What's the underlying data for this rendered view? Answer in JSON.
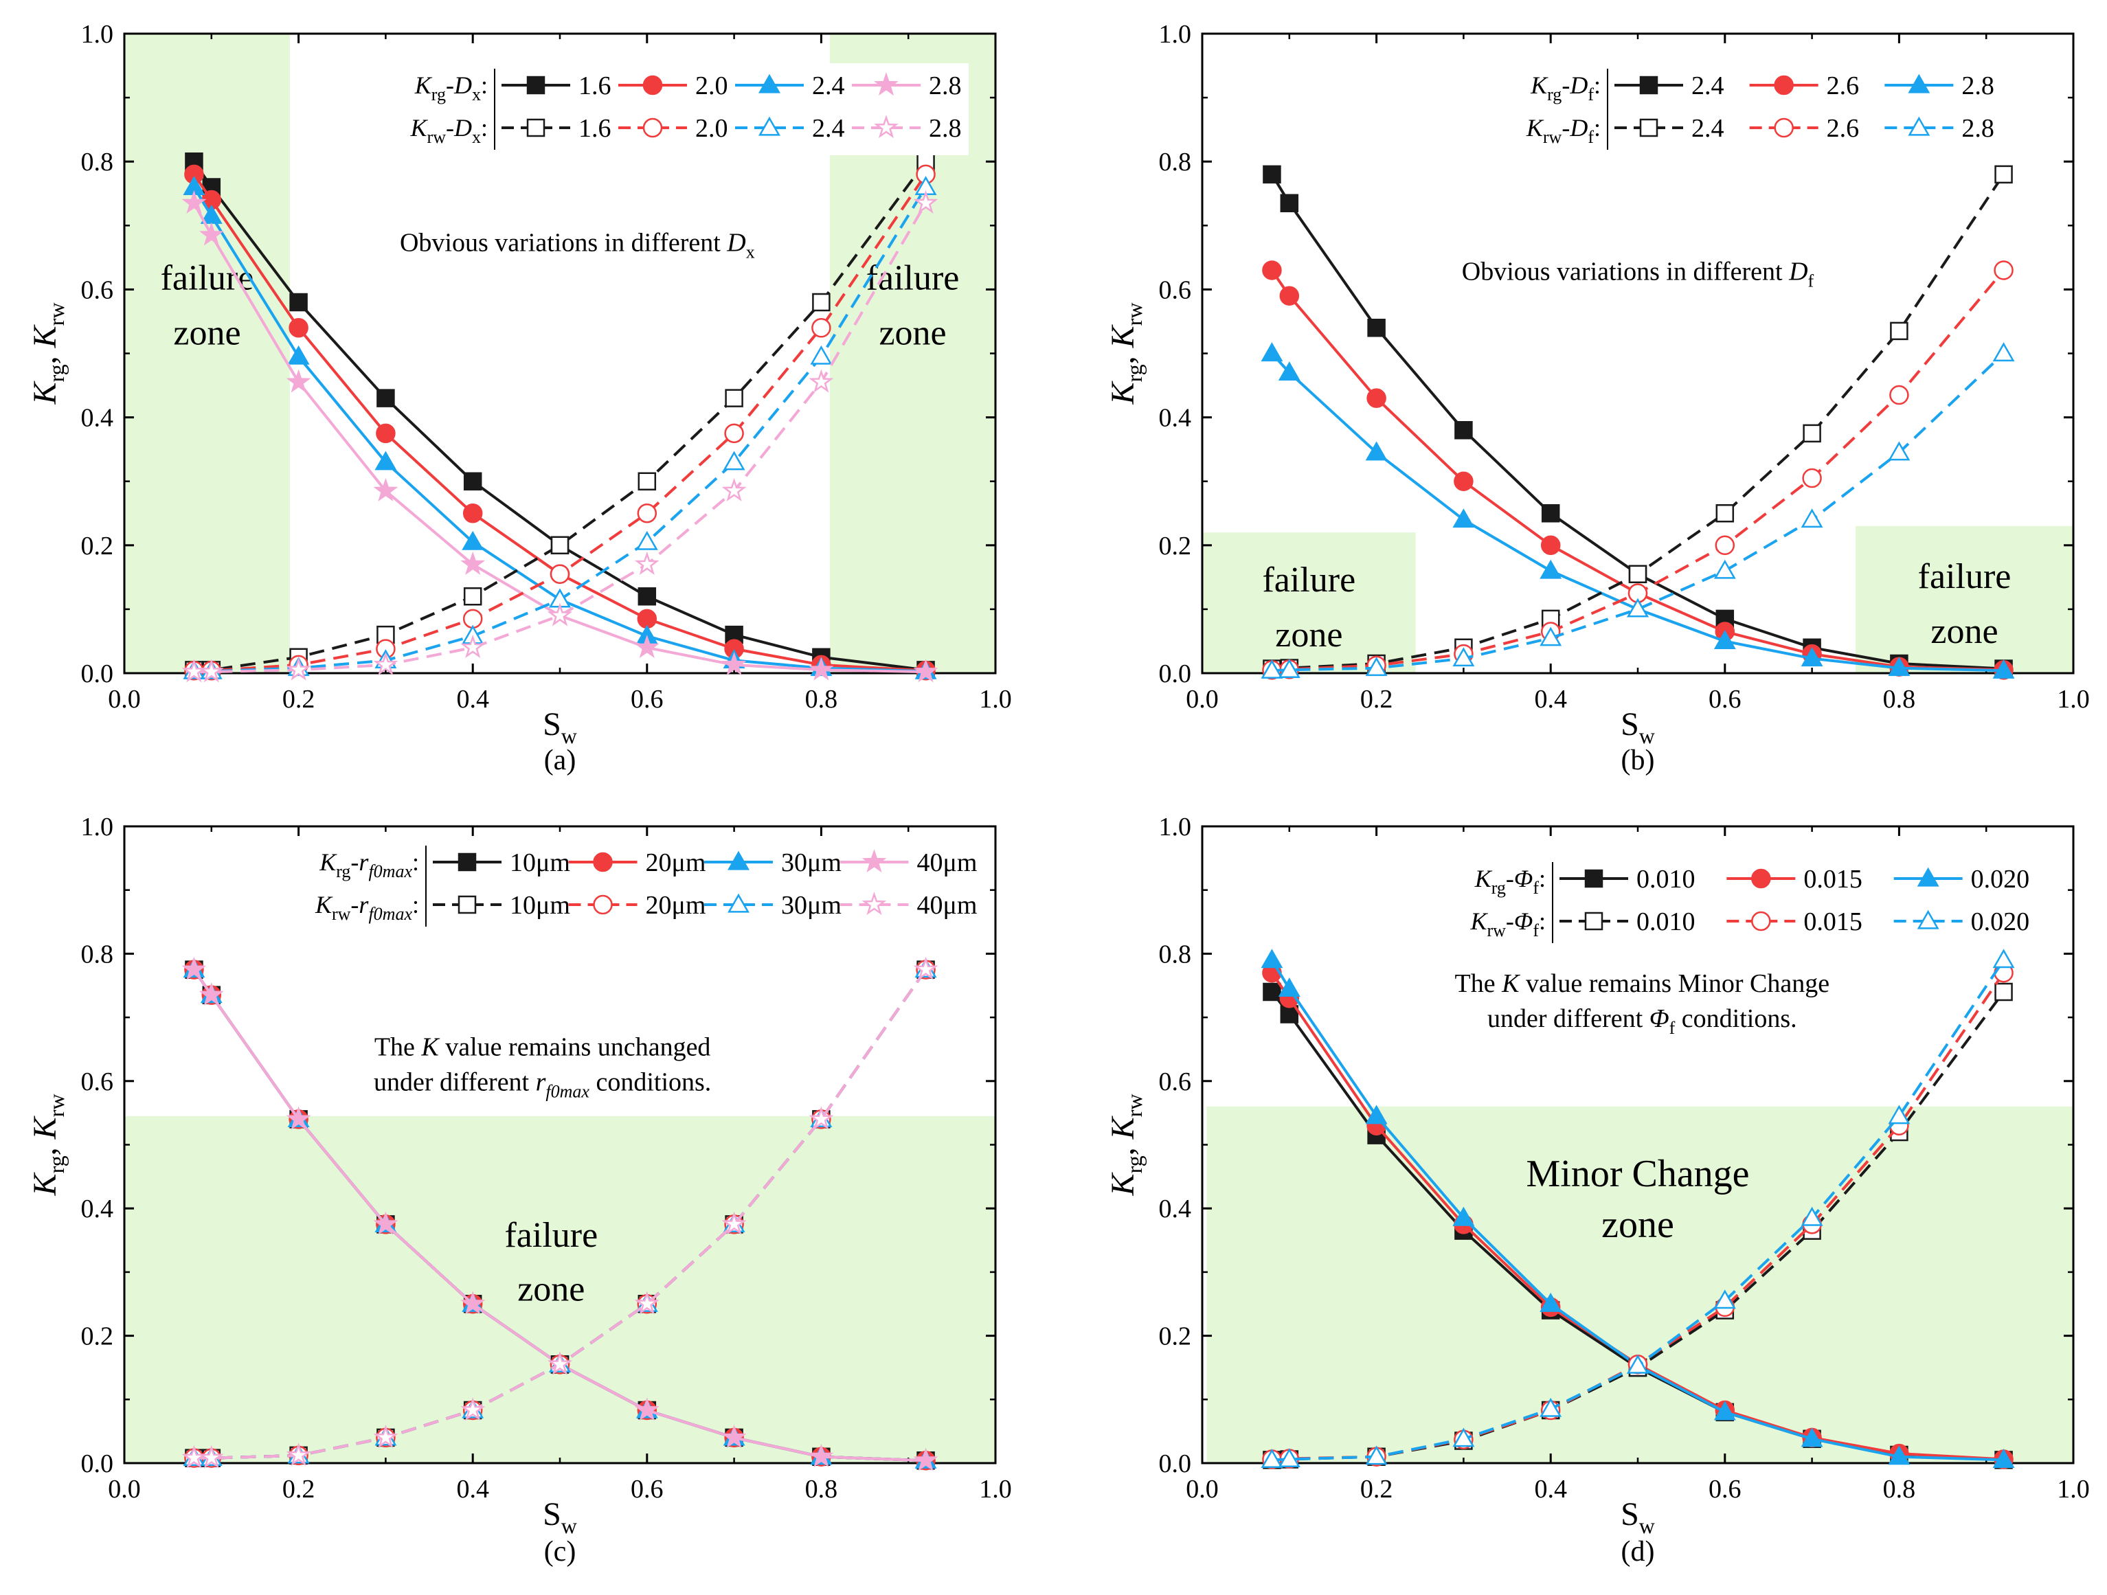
{
  "colors": {
    "black": "#1a1a1a",
    "red": "#f03c3c",
    "blue": "#1aa3ef",
    "pink": "#f4a8d6",
    "zone": "#e4f7d7",
    "axis": "#000000"
  },
  "chart_data": [
    {
      "type": "line",
      "panel": "(a)",
      "xlabel": "S",
      "xlabel_sub": "w",
      "ylabel": "K_rg, K_rw",
      "xlim": [
        0.0,
        1.0
      ],
      "ylim": [
        0.0,
        1.0
      ],
      "xticks": [
        "0.0",
        "0.2",
        "0.4",
        "0.6",
        "0.8",
        "1.0"
      ],
      "yticks": [
        "0.0",
        "0.2",
        "0.4",
        "0.6",
        "0.8",
        "1.0"
      ],
      "annotation": {
        "text": "Obvious variations in different ",
        "italic": "D",
        "sub": "x"
      },
      "zones": [
        {
          "x0": 0.0,
          "x1": 0.19,
          "y0": 0.0,
          "y1": 1.0,
          "line1": "failure",
          "line2": "zone"
        },
        {
          "x0": 0.81,
          "x1": 1.0,
          "y0": 0.0,
          "y1": 1.0,
          "line1": "failure",
          "line2": "zone"
        }
      ],
      "legend": {
        "row1_label": {
          "k": "K",
          "ksub": "rg",
          "sep": "-",
          "p": "D",
          "psub": "x"
        },
        "row2_label": {
          "k": "K",
          "ksub": "rw",
          "sep": "-",
          "p": "D",
          "psub": "x"
        },
        "values": [
          "1.6",
          "2.0",
          "2.4",
          "2.8"
        ]
      },
      "x": [
        0.08,
        0.1,
        0.2,
        0.3,
        0.4,
        0.5,
        0.6,
        0.7,
        0.8,
        0.92
      ],
      "series": [
        {
          "name": "Krg-Dx 1.6",
          "color": "black",
          "marker": "square",
          "filled": true,
          "dashed": false,
          "values": [
            0.8,
            0.76,
            0.58,
            0.43,
            0.3,
            0.2,
            0.12,
            0.06,
            0.025,
            0.005
          ]
        },
        {
          "name": "Krg-Dx 2.0",
          "color": "red",
          "marker": "circle",
          "filled": true,
          "dashed": false,
          "values": [
            0.78,
            0.74,
            0.54,
            0.375,
            0.25,
            0.155,
            0.085,
            0.038,
            0.013,
            0.004
          ]
        },
        {
          "name": "Krg-Dx 2.4",
          "color": "blue",
          "marker": "triangle",
          "filled": true,
          "dashed": false,
          "values": [
            0.76,
            0.715,
            0.495,
            0.33,
            0.205,
            0.115,
            0.058,
            0.02,
            0.008,
            0.003
          ]
        },
        {
          "name": "Krg-Dx 2.8",
          "color": "pink",
          "marker": "star",
          "filled": true,
          "dashed": false,
          "values": [
            0.735,
            0.685,
            0.455,
            0.285,
            0.17,
            0.09,
            0.04,
            0.013,
            0.005,
            0.002
          ]
        },
        {
          "name": "Krw-Dx 1.6",
          "color": "black",
          "marker": "square",
          "filled": false,
          "dashed": true,
          "values": [
            0.005,
            0.005,
            0.025,
            0.06,
            0.12,
            0.2,
            0.3,
            0.43,
            0.58,
            0.8
          ]
        },
        {
          "name": "Krw-Dx 2.0",
          "color": "red",
          "marker": "circle",
          "filled": false,
          "dashed": true,
          "values": [
            0.004,
            0.004,
            0.013,
            0.038,
            0.085,
            0.155,
            0.25,
            0.375,
            0.54,
            0.78
          ]
        },
        {
          "name": "Krw-Dx 2.4",
          "color": "blue",
          "marker": "triangle",
          "filled": false,
          "dashed": true,
          "values": [
            0.003,
            0.003,
            0.008,
            0.02,
            0.058,
            0.115,
            0.205,
            0.33,
            0.495,
            0.76
          ]
        },
        {
          "name": "Krw-Dx 2.8",
          "color": "pink",
          "marker": "star",
          "filled": false,
          "dashed": true,
          "values": [
            0.002,
            0.002,
            0.005,
            0.013,
            0.04,
            0.09,
            0.17,
            0.285,
            0.455,
            0.735
          ]
        }
      ]
    },
    {
      "type": "line",
      "panel": "(b)",
      "xlabel": "S",
      "xlabel_sub": "w",
      "ylabel": "K_rg, K_rw",
      "xlim": [
        0.0,
        1.0
      ],
      "ylim": [
        0.0,
        1.0
      ],
      "xticks": [
        "0.0",
        "0.2",
        "0.4",
        "0.6",
        "0.8",
        "1.0"
      ],
      "yticks": [
        "0.0",
        "0.2",
        "0.4",
        "0.6",
        "0.8",
        "1.0"
      ],
      "annotation": {
        "text": "Obvious variations in different ",
        "italic": "D",
        "sub": "f"
      },
      "zones": [
        {
          "x0": 0.0,
          "x1": 0.245,
          "y0": 0.0,
          "y1": 0.22,
          "line1": "failure",
          "line2": "zone"
        },
        {
          "x0": 0.75,
          "x1": 1.0,
          "y0": 0.0,
          "y1": 0.23,
          "line1": "failure",
          "line2": "zone"
        }
      ],
      "legend": {
        "row1_label": {
          "k": "K",
          "ksub": "rg",
          "sep": "-",
          "p": "D",
          "psub": "f"
        },
        "row2_label": {
          "k": "K",
          "ksub": "rw",
          "sep": "-",
          "p": "D",
          "psub": "f"
        },
        "values": [
          "2.4",
          "2.6",
          "2.8"
        ]
      },
      "x": [
        0.08,
        0.1,
        0.2,
        0.3,
        0.4,
        0.5,
        0.6,
        0.7,
        0.8,
        0.92
      ],
      "series": [
        {
          "name": "Krg-Df 2.4",
          "color": "black",
          "marker": "square",
          "filled": true,
          "dashed": false,
          "values": [
            0.78,
            0.735,
            0.54,
            0.38,
            0.25,
            0.155,
            0.085,
            0.04,
            0.015,
            0.007
          ]
        },
        {
          "name": "Krg-Df 2.6",
          "color": "red",
          "marker": "circle",
          "filled": true,
          "dashed": false,
          "values": [
            0.63,
            0.59,
            0.43,
            0.3,
            0.2,
            0.125,
            0.065,
            0.03,
            0.01,
            0.005
          ]
        },
        {
          "name": "Krg-Df 2.8",
          "color": "blue",
          "marker": "triangle",
          "filled": true,
          "dashed": false,
          "values": [
            0.5,
            0.47,
            0.345,
            0.24,
            0.16,
            0.1,
            0.05,
            0.023,
            0.008,
            0.004
          ]
        },
        {
          "name": "Krw-Df 2.4",
          "color": "black",
          "marker": "square",
          "filled": false,
          "dashed": true,
          "values": [
            0.007,
            0.008,
            0.015,
            0.04,
            0.085,
            0.155,
            0.25,
            0.375,
            0.535,
            0.78
          ]
        },
        {
          "name": "Krw-Df 2.6",
          "color": "red",
          "marker": "circle",
          "filled": false,
          "dashed": true,
          "values": [
            0.005,
            0.006,
            0.012,
            0.03,
            0.065,
            0.125,
            0.2,
            0.305,
            0.435,
            0.63
          ]
        },
        {
          "name": "Krw-Df 2.8",
          "color": "blue",
          "marker": "triangle",
          "filled": false,
          "dashed": true,
          "values": [
            0.004,
            0.005,
            0.008,
            0.023,
            0.055,
            0.1,
            0.16,
            0.24,
            0.345,
            0.5
          ]
        }
      ]
    },
    {
      "type": "line",
      "panel": "(c)",
      "xlabel": "S",
      "xlabel_sub": "w",
      "ylabel": "K_rg, K_rw",
      "xlim": [
        0.0,
        1.0
      ],
      "ylim": [
        0.0,
        1.0
      ],
      "xticks": [
        "0.0",
        "0.2",
        "0.4",
        "0.6",
        "0.8",
        "1.0"
      ],
      "yticks": [
        "0.0",
        "0.2",
        "0.4",
        "0.6",
        "0.8",
        "1.0"
      ],
      "annotation_lines": [
        {
          "parts": [
            {
              "t": "The "
            },
            {
              "t": "K",
              "i": true
            },
            {
              "t": " value remains unchanged"
            }
          ]
        },
        {
          "parts": [
            {
              "t": "under different "
            },
            {
              "t": "r",
              "i": true
            },
            {
              "t": "f0max",
              "i": true,
              "sub": true
            },
            {
              "t": " conditions."
            }
          ]
        }
      ],
      "zones": [
        {
          "x0": 0.0,
          "x1": 1.0,
          "y0": 0.0,
          "y1": 0.545,
          "line1": "failure",
          "line2": "zone",
          "label_x": 0.49,
          "label_y1": 0.34,
          "label_y2": 0.255
        }
      ],
      "legend": {
        "row1_label": {
          "k": "K",
          "ksub": "rg",
          "sep": "-",
          "p": "r",
          "psub": "f0max"
        },
        "row2_label": {
          "k": "K",
          "ksub": "rw",
          "sep": "-",
          "p": "r",
          "psub": "f0max"
        },
        "values": [
          "10μm",
          "20μm",
          "30μm",
          "40μm"
        ]
      },
      "x": [
        0.08,
        0.1,
        0.2,
        0.3,
        0.4,
        0.5,
        0.6,
        0.7,
        0.8,
        0.92
      ],
      "series": [
        {
          "name": "Krg-rf0max 10μm",
          "color": "black",
          "marker": "square",
          "filled": true,
          "dashed": false,
          "values": [
            0.775,
            0.735,
            0.54,
            0.375,
            0.25,
            0.155,
            0.083,
            0.04,
            0.01,
            0.004
          ]
        },
        {
          "name": "Krg-rf0max 20μm",
          "color": "red",
          "marker": "circle",
          "filled": true,
          "dashed": false,
          "values": [
            0.775,
            0.735,
            0.54,
            0.375,
            0.25,
            0.155,
            0.083,
            0.04,
            0.01,
            0.004
          ]
        },
        {
          "name": "Krg-rf0max 30μm",
          "color": "blue",
          "marker": "triangle",
          "filled": true,
          "dashed": false,
          "values": [
            0.775,
            0.735,
            0.54,
            0.375,
            0.25,
            0.155,
            0.083,
            0.04,
            0.01,
            0.004
          ]
        },
        {
          "name": "Krg-rf0max 40μm",
          "color": "pink",
          "marker": "star",
          "filled": true,
          "dashed": false,
          "values": [
            0.775,
            0.735,
            0.54,
            0.375,
            0.25,
            0.155,
            0.083,
            0.04,
            0.01,
            0.004
          ]
        },
        {
          "name": "Krw-rf0max 10μm",
          "color": "black",
          "marker": "square",
          "filled": false,
          "dashed": true,
          "values": [
            0.008,
            0.008,
            0.012,
            0.04,
            0.083,
            0.155,
            0.25,
            0.375,
            0.54,
            0.775
          ]
        },
        {
          "name": "Krw-rf0max 20μm",
          "color": "red",
          "marker": "circle",
          "filled": false,
          "dashed": true,
          "values": [
            0.008,
            0.008,
            0.012,
            0.04,
            0.083,
            0.155,
            0.25,
            0.375,
            0.54,
            0.775
          ]
        },
        {
          "name": "Krw-rf0max 30μm",
          "color": "blue",
          "marker": "triangle",
          "filled": false,
          "dashed": true,
          "values": [
            0.008,
            0.008,
            0.012,
            0.04,
            0.083,
            0.155,
            0.25,
            0.375,
            0.54,
            0.775
          ]
        },
        {
          "name": "Krw-rf0max 40μm",
          "color": "pink",
          "marker": "star",
          "filled": false,
          "dashed": true,
          "values": [
            0.008,
            0.008,
            0.012,
            0.04,
            0.083,
            0.155,
            0.25,
            0.375,
            0.54,
            0.775
          ]
        }
      ]
    },
    {
      "type": "line",
      "panel": "(d)",
      "xlabel": "S",
      "xlabel_sub": "w",
      "ylabel": "K_rg, K_rw",
      "xlim": [
        0.0,
        1.0
      ],
      "ylim": [
        0.0,
        1.0
      ],
      "xticks": [
        "0.0",
        "0.2",
        "0.4",
        "0.6",
        "0.8",
        "1.0"
      ],
      "yticks": [
        "0.0",
        "0.2",
        "0.4",
        "0.6",
        "0.8",
        "1.0"
      ],
      "annotation_lines": [
        {
          "parts": [
            {
              "t": "The "
            },
            {
              "t": "K",
              "i": true
            },
            {
              "t": " value remains Minor Change"
            }
          ]
        },
        {
          "parts": [
            {
              "t": "under different "
            },
            {
              "t": "Φ",
              "i": true
            },
            {
              "t": "f",
              "sub": true
            },
            {
              "t": " conditions."
            }
          ]
        }
      ],
      "zones": [
        {
          "x0": 0.005,
          "x1": 1.0,
          "y0": 0.0,
          "y1": 0.56,
          "line1": "Minor Change",
          "line2": "zone",
          "label_x": 0.5,
          "label_y1": 0.435,
          "label_y2": 0.355
        }
      ],
      "legend": {
        "row1_label": {
          "k": "K",
          "ksub": "rg",
          "sep": "-",
          "p": "Φ",
          "psub": "f"
        },
        "row2_label": {
          "k": "K",
          "ksub": "rw",
          "sep": "-",
          "p": "Φ",
          "psub": "f"
        },
        "values": [
          "0.010",
          "0.015",
          "0.020"
        ]
      },
      "x": [
        0.08,
        0.1,
        0.2,
        0.3,
        0.4,
        0.5,
        0.6,
        0.7,
        0.8,
        0.92
      ],
      "series": [
        {
          "name": "Krg-Φf 0.010",
          "color": "black",
          "marker": "square",
          "filled": true,
          "dashed": false,
          "values": [
            0.74,
            0.705,
            0.515,
            0.365,
            0.24,
            0.15,
            0.08,
            0.038,
            0.013,
            0.005
          ]
        },
        {
          "name": "Krg-Φf 0.015",
          "color": "red",
          "marker": "circle",
          "filled": true,
          "dashed": false,
          "values": [
            0.77,
            0.73,
            0.53,
            0.375,
            0.245,
            0.155,
            0.083,
            0.04,
            0.015,
            0.006
          ]
        },
        {
          "name": "Krg-Φf 0.020",
          "color": "blue",
          "marker": "triangle",
          "filled": true,
          "dashed": false,
          "values": [
            0.79,
            0.745,
            0.545,
            0.385,
            0.25,
            0.153,
            0.08,
            0.038,
            0.01,
            0.005
          ]
        },
        {
          "name": "Krw-Φf 0.010",
          "color": "black",
          "marker": "square",
          "filled": false,
          "dashed": true,
          "values": [
            0.005,
            0.006,
            0.01,
            0.035,
            0.083,
            0.15,
            0.24,
            0.365,
            0.52,
            0.74
          ]
        },
        {
          "name": "Krw-Φf 0.015",
          "color": "red",
          "marker": "circle",
          "filled": false,
          "dashed": true,
          "values": [
            0.006,
            0.007,
            0.01,
            0.037,
            0.083,
            0.155,
            0.245,
            0.375,
            0.53,
            0.77
          ]
        },
        {
          "name": "Krw-Φf 0.020",
          "color": "blue",
          "marker": "triangle",
          "filled": false,
          "dashed": true,
          "values": [
            0.005,
            0.006,
            0.01,
            0.038,
            0.085,
            0.153,
            0.255,
            0.385,
            0.545,
            0.79
          ]
        }
      ]
    }
  ]
}
